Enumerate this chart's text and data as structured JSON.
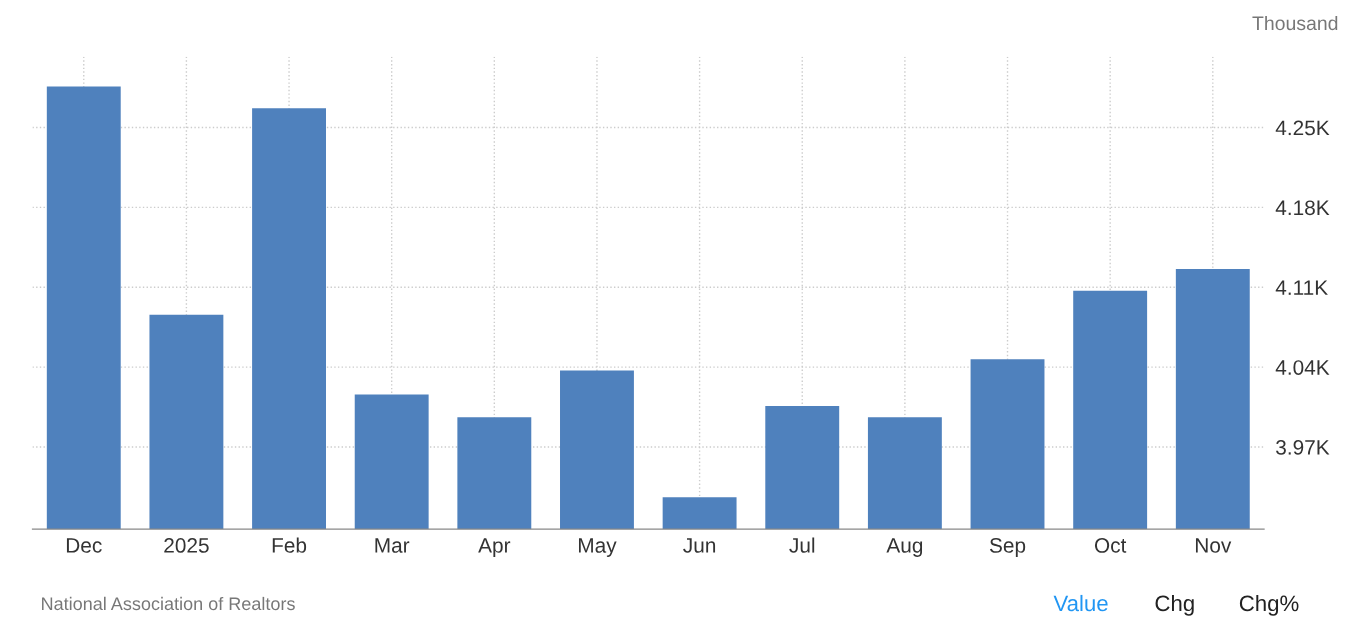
{
  "chart_data": {
    "type": "bar",
    "ylabel": "Thousand",
    "categories": [
      "Dec",
      "2025",
      "Feb",
      "Mar",
      "Apr",
      "May",
      "Jun",
      "Jul",
      "Aug",
      "Sep",
      "Oct",
      "Nov"
    ],
    "values": [
      4.286,
      4.086,
      4.267,
      4.016,
      3.996,
      4.037,
      3.926,
      4.006,
      3.996,
      4.047,
      4.107,
      4.126
    ],
    "color": "#4f81bd",
    "ylim": [
      3.898,
      4.312
    ],
    "yticks": [
      {
        "value": 3.97,
        "label": "3.97K"
      },
      {
        "value": 4.04,
        "label": "4.04K"
      },
      {
        "value": 4.11,
        "label": "4.11K"
      },
      {
        "value": 4.18,
        "label": "4.18K"
      },
      {
        "value": 4.25,
        "label": "4.25K"
      }
    ],
    "grid": true,
    "annotations": [
      "National Association of Realtors",
      "Value",
      "Chg",
      "Chg%"
    ]
  }
}
